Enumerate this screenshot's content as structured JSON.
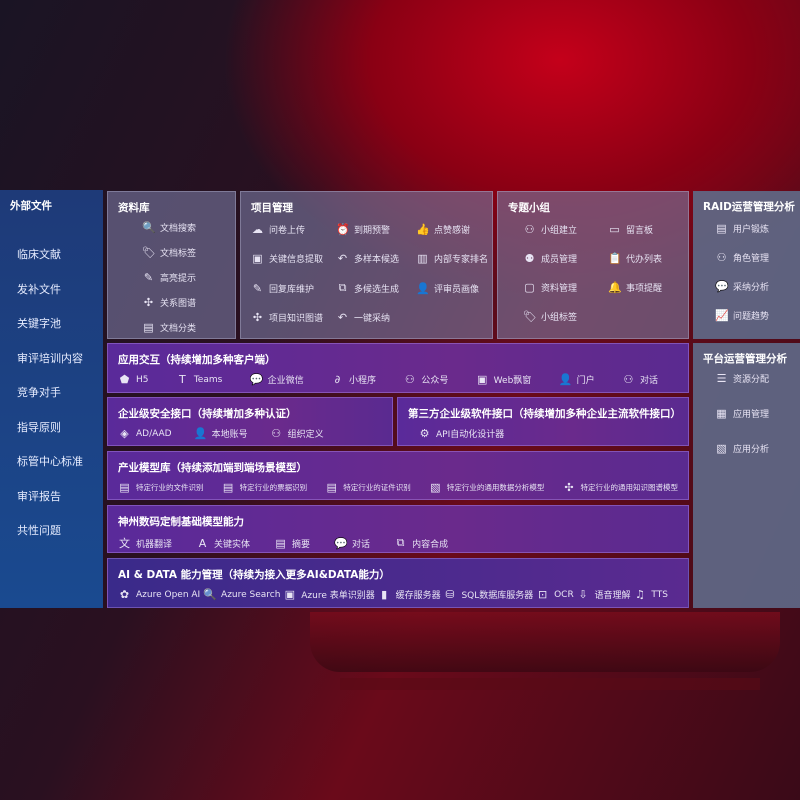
{
  "external_files": {
    "title": "外部文件",
    "items": [
      "临床文献",
      "发补文件",
      "关键字池",
      "审评培训内容",
      "竞争对手",
      "指导原则",
      "标管中心标准",
      "审评报告",
      "共性问题"
    ]
  },
  "library": {
    "title": "资料库",
    "items": [
      {
        "label": "文档搜索",
        "icon": "doc-search"
      },
      {
        "label": "文档标签",
        "icon": "tag"
      },
      {
        "label": "高亮提示",
        "icon": "pen"
      },
      {
        "label": "关系图谱",
        "icon": "graph"
      },
      {
        "label": "文档分类",
        "icon": "doc"
      }
    ]
  },
  "project": {
    "title": "项目管理",
    "items": [
      {
        "label": "问卷上传",
        "icon": "cloud-upload"
      },
      {
        "label": "到期预警",
        "icon": "alarm"
      },
      {
        "label": "点赞感谢",
        "icon": "thumbs-up"
      },
      {
        "label": "关键信息提取",
        "icon": "window"
      },
      {
        "label": "多样本候选",
        "icon": "reply"
      },
      {
        "label": "内部专家排名",
        "icon": "ranking"
      },
      {
        "label": "回复库维护",
        "icon": "pen"
      },
      {
        "label": "多候选生成",
        "icon": "puzzle"
      },
      {
        "label": "评审员画像",
        "icon": "user"
      },
      {
        "label": "项目知识图谱",
        "icon": "graph"
      },
      {
        "label": "一键采纳",
        "icon": "reply"
      }
    ]
  },
  "group": {
    "title": "专题小组",
    "items": [
      {
        "label": "小组建立",
        "icon": "users"
      },
      {
        "label": "留言板",
        "icon": "bbs"
      },
      {
        "label": "成员管理",
        "icon": "user-add"
      },
      {
        "label": "代办列表",
        "icon": "clipboard"
      },
      {
        "label": "资料管理",
        "icon": "folder"
      },
      {
        "label": "事项提醒",
        "icon": "bell"
      },
      {
        "label": "小组标签",
        "icon": "tag"
      }
    ]
  },
  "raid": {
    "title": "RAID运营管理分析",
    "items": [
      {
        "label": "用户锻炼",
        "icon": "id-card"
      },
      {
        "label": "角色管理",
        "icon": "users"
      },
      {
        "label": "采纳分析",
        "icon": "qa"
      },
      {
        "label": "问题趋势",
        "icon": "trend"
      }
    ]
  },
  "platform": {
    "title": "平台运营管理分析",
    "items": [
      {
        "label": "资源分配",
        "icon": "checklist"
      },
      {
        "label": "应用管理",
        "icon": "apps"
      },
      {
        "label": "应用分析",
        "icon": "chart"
      }
    ]
  },
  "interaction": {
    "title": "应用交互（持续增加多种客户端）",
    "items": [
      {
        "label": "H5",
        "icon": "html5"
      },
      {
        "label": "Teams",
        "icon": "teams"
      },
      {
        "label": "企业微信",
        "icon": "chat"
      },
      {
        "label": "小程序",
        "icon": "mini-program"
      },
      {
        "label": "公众号",
        "icon": "users"
      },
      {
        "label": "Web飘窗",
        "icon": "window"
      },
      {
        "label": "门户",
        "icon": "user"
      },
      {
        "label": "对话",
        "icon": "users"
      }
    ]
  },
  "security": {
    "title": "企业级安全接口（持续增加多种认证）",
    "items": [
      {
        "label": "AD/AAD",
        "icon": "diamond"
      },
      {
        "label": "本地账号",
        "icon": "user"
      },
      {
        "label": "组织定义",
        "icon": "users"
      }
    ]
  },
  "third_party": {
    "title": "第三方企业级软件接口（持续增加多种企业主流软件接口）",
    "items": [
      {
        "label": "API自动化设计器",
        "icon": "gear"
      }
    ]
  },
  "industry": {
    "title": "产业模型库（持续添加端到端场景模型）",
    "items": [
      {
        "label": "特定行业的文件识别",
        "icon": "doc"
      },
      {
        "label": "特定行业的票据识别",
        "icon": "receipt"
      },
      {
        "label": "特定行业的证件识别",
        "icon": "id-card"
      },
      {
        "label": "特定行业的通用数据分析模型",
        "icon": "chart"
      },
      {
        "label": "特定行业的通用知识图谱模型",
        "icon": "graph"
      }
    ]
  },
  "base_model": {
    "title": "神州数码定制基础模型能力",
    "items": [
      {
        "label": "机器翻译",
        "icon": "translate"
      },
      {
        "label": "关键实体",
        "icon": "entity"
      },
      {
        "label": "摘要",
        "icon": "doc"
      },
      {
        "label": "对话",
        "icon": "chat"
      },
      {
        "label": "内容合成",
        "icon": "puzzle"
      }
    ]
  },
  "ai_data": {
    "title": "AI & DATA 能力管理（持续为接入更多AI&DATA能力）",
    "items": [
      {
        "label": "Azure Open AI",
        "icon": "openai"
      },
      {
        "label": "Azure Search",
        "icon": "doc-search"
      },
      {
        "label": "Azure 表单识别器",
        "icon": "form"
      },
      {
        "label": "缓存服务器",
        "icon": "server"
      },
      {
        "label": "SQL数据库服务器",
        "icon": "database"
      },
      {
        "label": "OCR",
        "icon": "ocr"
      },
      {
        "label": "语音理解",
        "icon": "voice"
      },
      {
        "label": "TTS",
        "icon": "tts"
      }
    ]
  }
}
